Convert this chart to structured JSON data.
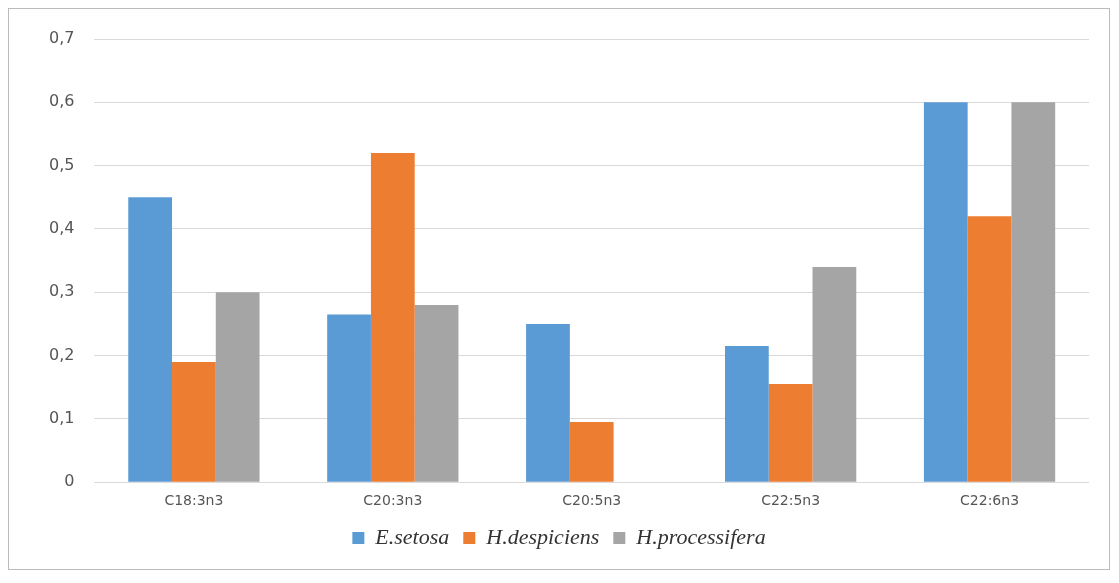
{
  "chart_data": {
    "type": "bar",
    "categories": [
      "C18:3n3",
      "C20:3n3",
      "C20:5n3",
      "C22:5n3",
      "C22:6n3"
    ],
    "series": [
      {
        "name": "E.setosa",
        "color": "#5b9bd5",
        "values": [
          0.45,
          0.265,
          0.25,
          0.215,
          0.6
        ]
      },
      {
        "name": "H.despiciens",
        "color": "#ed7d31",
        "values": [
          0.19,
          0.52,
          0.095,
          0.155,
          0.42
        ]
      },
      {
        "name": "H.processifera",
        "color": "#a5a5a5",
        "values": [
          0.3,
          0.28,
          0,
          0.34,
          0.6
        ]
      }
    ],
    "ylim": [
      0,
      0.7
    ],
    "yticks": [
      {
        "value": 0,
        "label": "0"
      },
      {
        "value": 0.1,
        "label": "0,1"
      },
      {
        "value": 0.2,
        "label": "0,2"
      },
      {
        "value": 0.3,
        "label": "0,3"
      },
      {
        "value": 0.4,
        "label": "0,4"
      },
      {
        "value": 0.5,
        "label": "0,5"
      },
      {
        "value": 0.6,
        "label": "0,6"
      },
      {
        "value": 0.7,
        "label": "0,7"
      }
    ],
    "grid": "y",
    "legend": "bottom"
  }
}
